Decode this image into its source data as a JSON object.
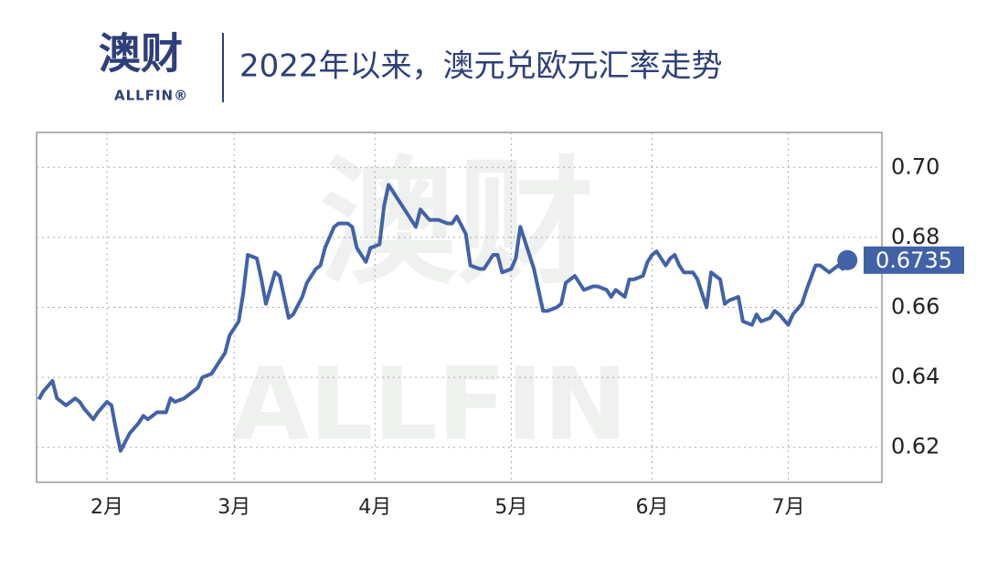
{
  "logo": {
    "name": "澳财",
    "sub": "ALLFIN®"
  },
  "watermark": {
    "name": "澳财",
    "sub": "ALLFIN"
  },
  "chart_data": {
    "type": "line",
    "title": "2022年以来，澳元兑欧元汇率走势",
    "xlim": [
      15.5,
      201.6
    ],
    "xticks": [
      {
        "value": 31,
        "label": "2月"
      },
      {
        "value": 59,
        "label": "3月"
      },
      {
        "value": 90,
        "label": "4月"
      },
      {
        "value": 120,
        "label": "5月"
      },
      {
        "value": 151,
        "label": "6月"
      },
      {
        "value": 181,
        "label": "7月"
      }
    ],
    "ylim": [
      0.61,
      0.71
    ],
    "yticks": [
      0.62,
      0.64,
      0.66,
      0.68,
      {
        "value": 0.7,
        "label": "0.70"
      }
    ],
    "grid": true,
    "series": [
      {
        "color": "#4262a8",
        "x": [
          16,
          17,
          19,
          20,
          22,
          24,
          25,
          26,
          28,
          29,
          31,
          32,
          33,
          34,
          36,
          38,
          39,
          40,
          42,
          44,
          45,
          46,
          48,
          49,
          51,
          52,
          54,
          55,
          57,
          58,
          60,
          61,
          62,
          64,
          65,
          66,
          68,
          69,
          71,
          72,
          74,
          75,
          77,
          78,
          79,
          81,
          82,
          84,
          85,
          86,
          88,
          89,
          91,
          92,
          93,
          95,
          96,
          97,
          99,
          100,
          102,
          103,
          104,
          106,
          107,
          108,
          110,
          111,
          113,
          114,
          116,
          117,
          118,
          120,
          121,
          122,
          124,
          125,
          127,
          128,
          130,
          131,
          132,
          134,
          135,
          136,
          138,
          139,
          141,
          142,
          143,
          145,
          146,
          147,
          149,
          150,
          151,
          152,
          154,
          155,
          156,
          157,
          158,
          160,
          161,
          162,
          163,
          164,
          166,
          167,
          168,
          170,
          171,
          173,
          174,
          175,
          177,
          178,
          179,
          181,
          182,
          184,
          185,
          187,
          188,
          189,
          190,
          192,
          193,
          194
        ],
        "values": [
          0.6337,
          0.636,
          0.639,
          0.634,
          0.632,
          0.634,
          0.633,
          0.631,
          0.628,
          0.63,
          0.633,
          0.632,
          0.625,
          0.619,
          0.624,
          0.627,
          0.629,
          0.628,
          0.63,
          0.63,
          0.634,
          0.633,
          0.634,
          0.635,
          0.637,
          0.64,
          0.641,
          0.643,
          0.647,
          0.652,
          0.656,
          0.664,
          0.675,
          0.674,
          0.668,
          0.661,
          0.67,
          0.669,
          0.657,
          0.658,
          0.663,
          0.667,
          0.671,
          0.672,
          0.677,
          0.683,
          0.684,
          0.684,
          0.683,
          0.677,
          0.673,
          0.677,
          0.678,
          0.689,
          0.695,
          0.691,
          0.689,
          0.687,
          0.683,
          0.688,
          0.685,
          0.685,
          0.685,
          0.684,
          0.684,
          0.686,
          0.681,
          0.672,
          0.671,
          0.671,
          0.675,
          0.675,
          0.67,
          0.671,
          0.674,
          0.683,
          0.675,
          0.671,
          0.659,
          0.659,
          0.66,
          0.661,
          0.667,
          0.669,
          0.667,
          0.665,
          0.666,
          0.666,
          0.665,
          0.663,
          0.665,
          0.663,
          0.668,
          0.668,
          0.669,
          0.673,
          0.675,
          0.676,
          0.672,
          0.674,
          0.675,
          0.672,
          0.67,
          0.67,
          0.668,
          0.664,
          0.66,
          0.67,
          0.668,
          0.661,
          0.662,
          0.663,
          0.656,
          0.655,
          0.658,
          0.656,
          0.657,
          0.659,
          0.658,
          0.655,
          0.658,
          0.661,
          0.665,
          0.672,
          0.672,
          0.671,
          0.67,
          0.672,
          0.671,
          0.6735
        ]
      }
    ]
  }
}
